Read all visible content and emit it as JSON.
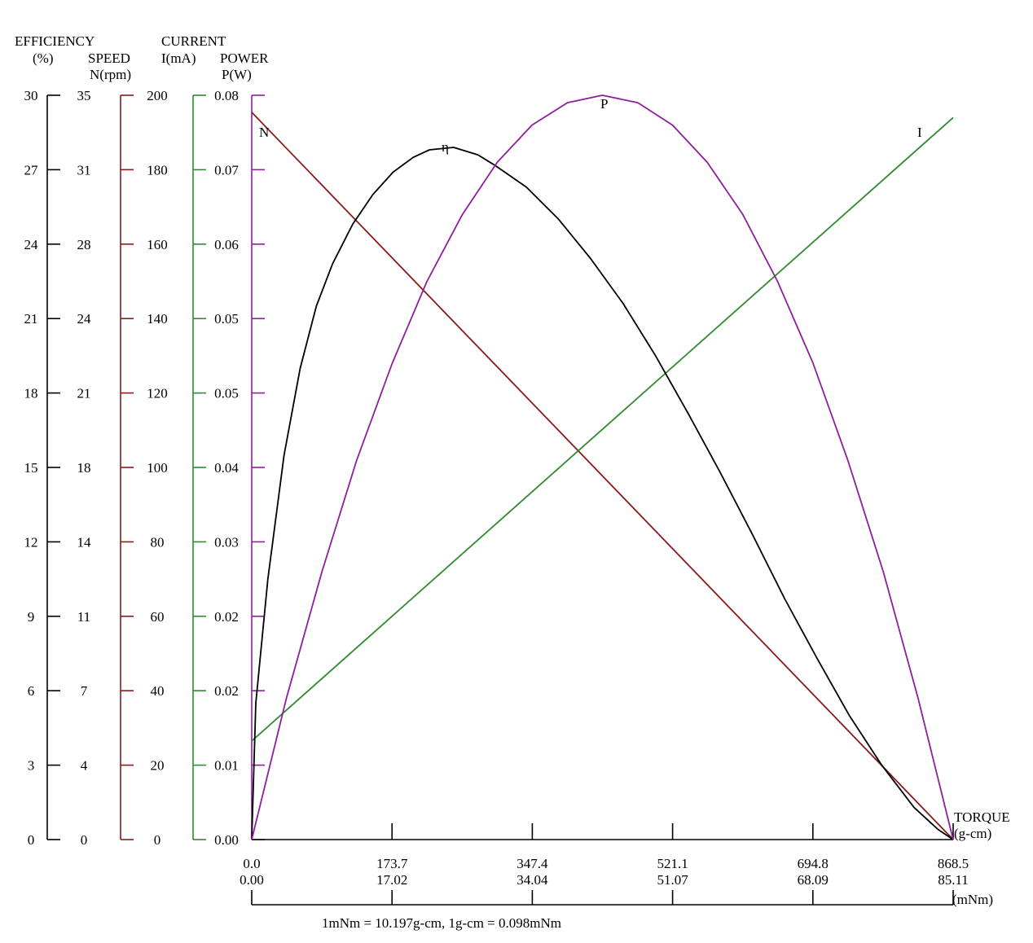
{
  "chart_data": {
    "type": "line",
    "x": {
      "label": "TORQUE",
      "unit_primary": "(g-cm)",
      "unit_secondary": "(mNm)",
      "range": [
        0,
        868.5
      ],
      "ticks_primary": [
        "0.0",
        "173.7",
        "347.4",
        "521.1",
        "694.8",
        "868.5"
      ],
      "ticks_secondary": [
        "0.00",
        "17.02",
        "34.04",
        "51.07",
        "68.09",
        "85.11"
      ]
    },
    "conversion_note": "1mNm = 10.197g-cm, 1g-cm = 0.098mNm",
    "axes": {
      "efficiency": {
        "title": "EFFICIENCY",
        "unit": "(%)",
        "color": "#000000",
        "range": [
          0,
          30
        ],
        "ticks": [
          "30",
          "27",
          "24",
          "21",
          "18",
          "15",
          "12",
          "9",
          "6",
          "3",
          "0"
        ]
      },
      "speed": {
        "title": "SPEED",
        "unit": "N(rpm)",
        "color": "#8b1a1a",
        "range": [
          0,
          35
        ],
        "ticks": [
          "35",
          "31",
          "28",
          "24",
          "21",
          "18",
          "14",
          "11",
          "7",
          "4",
          "0"
        ]
      },
      "current": {
        "title": "CURRENT",
        "unit": "I(mA)",
        "color": "#2e8b2e",
        "range": [
          0,
          200
        ],
        "ticks": [
          "200",
          "180",
          "160",
          "140",
          "120",
          "100",
          "80",
          "60",
          "40",
          "20",
          "0"
        ]
      },
      "power": {
        "title": "POWER",
        "unit": "P(W)",
        "color": "#8e1e9c",
        "range": [
          0,
          0.08
        ],
        "ticks": [
          "0.08",
          "0.07",
          "0.06",
          "0.05",
          "0.05",
          "0.04",
          "0.03",
          "0.02",
          "0.02",
          "0.01",
          "0.00"
        ]
      }
    },
    "series": [
      {
        "name": "N",
        "axis": "speed",
        "color": "#8b1a1a",
        "x": [
          0,
          868.5
        ],
        "y": [
          34.2,
          0
        ]
      },
      {
        "name": "I",
        "axis": "current",
        "color": "#2e8b2e",
        "x": [
          0,
          868.5
        ],
        "y": [
          26.5,
          194
        ]
      },
      {
        "name": "η",
        "axis": "efficiency",
        "color": "#000000",
        "x": [
          0,
          5,
          20,
          40,
          60,
          80,
          100,
          125,
          150,
          175,
          200,
          220,
          250,
          280,
          300,
          340,
          380,
          420,
          460,
          500,
          540,
          580,
          620,
          660,
          700,
          740,
          780,
          820,
          850,
          868.5
        ],
        "y": [
          0,
          5.5,
          10.5,
          15.5,
          19.0,
          21.5,
          23.2,
          24.8,
          26.0,
          26.9,
          27.5,
          27.8,
          27.9,
          27.6,
          27.2,
          26.3,
          25.0,
          23.4,
          21.6,
          19.5,
          17.2,
          14.8,
          12.3,
          9.7,
          7.3,
          5.0,
          3.0,
          1.3,
          0.4,
          0
        ]
      },
      {
        "name": "P",
        "axis": "power",
        "color": "#8e1e9c",
        "x": [
          0,
          43,
          87,
          130,
          174,
          217,
          261,
          304,
          347,
          391,
          434,
          478,
          521,
          564,
          608,
          651,
          695,
          738,
          782,
          825,
          868.5
        ],
        "y": [
          0,
          0.0152,
          0.0288,
          0.0408,
          0.0512,
          0.06,
          0.0672,
          0.0728,
          0.0768,
          0.0792,
          0.08,
          0.0792,
          0.0768,
          0.0728,
          0.0672,
          0.06,
          0.0512,
          0.0408,
          0.0288,
          0.0152,
          0
        ]
      }
    ],
    "grid": false
  }
}
